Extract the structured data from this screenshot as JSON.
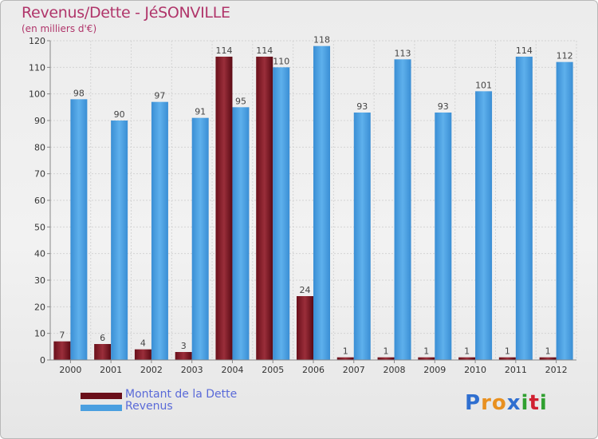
{
  "title": "Revenus/Dette - JéSONVILLE",
  "subtitle": "(en milliers d'€)",
  "colors": {
    "debt": "#7a1a24",
    "revenue": "#4a9fe0",
    "title": "#b0356a",
    "legend_text": "#5a6ad8"
  },
  "legend": [
    {
      "label": "Montant de la Dette",
      "series": "debt"
    },
    {
      "label": "Revenus",
      "series": "revenue"
    }
  ],
  "logo": {
    "letters": [
      "P",
      "r",
      "o",
      "x",
      "i",
      "t",
      "i"
    ],
    "colors": [
      "#2f6fd0",
      "#e89020",
      "#e89020",
      "#2f6fd0",
      "#30a030",
      "#d02030",
      "#30a030"
    ]
  },
  "chart_data": {
    "type": "bar",
    "title": "Revenus/Dette - JéSONVILLE",
    "subtitle": "(en milliers d'€)",
    "xlabel": "",
    "ylabel": "",
    "ylim": [
      0,
      120
    ],
    "yticks": [
      0,
      10,
      20,
      30,
      40,
      50,
      60,
      70,
      80,
      90,
      100,
      110,
      120
    ],
    "grid": true,
    "legend_position": "bottom-left",
    "categories": [
      "2000",
      "2001",
      "2002",
      "2003",
      "2004",
      "2005",
      "2006",
      "2007",
      "2008",
      "2009",
      "2010",
      "2011",
      "2012"
    ],
    "series": [
      {
        "name": "Montant de la Dette",
        "key": "debt",
        "values": [
          7,
          6,
          4,
          3,
          114,
          114,
          24,
          1,
          1,
          1,
          1,
          1,
          1
        ]
      },
      {
        "name": "Revenus",
        "key": "revenue",
        "values": [
          98,
          90,
          97,
          91,
          95,
          110,
          118,
          93,
          113,
          93,
          101,
          114,
          112
        ]
      }
    ]
  }
}
